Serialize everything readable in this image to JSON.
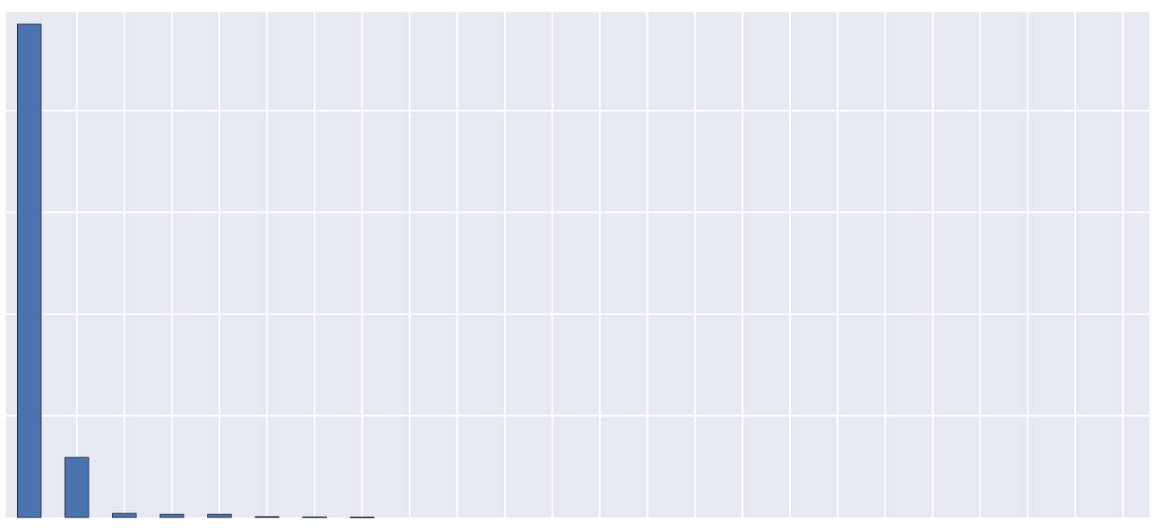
{
  "chart_data": {
    "type": "bar",
    "title": "",
    "xlabel": "",
    "ylabel": "",
    "categories": [
      "",
      "",
      "",
      "",
      "",
      "",
      "",
      "",
      "",
      "",
      "",
      "",
      "",
      "",
      "",
      "",
      "",
      "",
      "",
      "",
      "",
      "",
      "",
      ""
    ],
    "values": [
      4850,
      590,
      40,
      30,
      30,
      8,
      5,
      3,
      0,
      0,
      0,
      0,
      0,
      0,
      0,
      0,
      0,
      0,
      0,
      0,
      0,
      0,
      0,
      0
    ],
    "ylim": [
      0,
      5000
    ],
    "y_gridlines": [
      1000,
      2000,
      3000,
      4000,
      5000
    ],
    "grid": true,
    "legend": "none",
    "colors": {
      "background": "#e8e8f2",
      "grid": "#ffffff",
      "bar_fill": "#4c72b0",
      "bar_edge": "#1e2a3a"
    }
  }
}
